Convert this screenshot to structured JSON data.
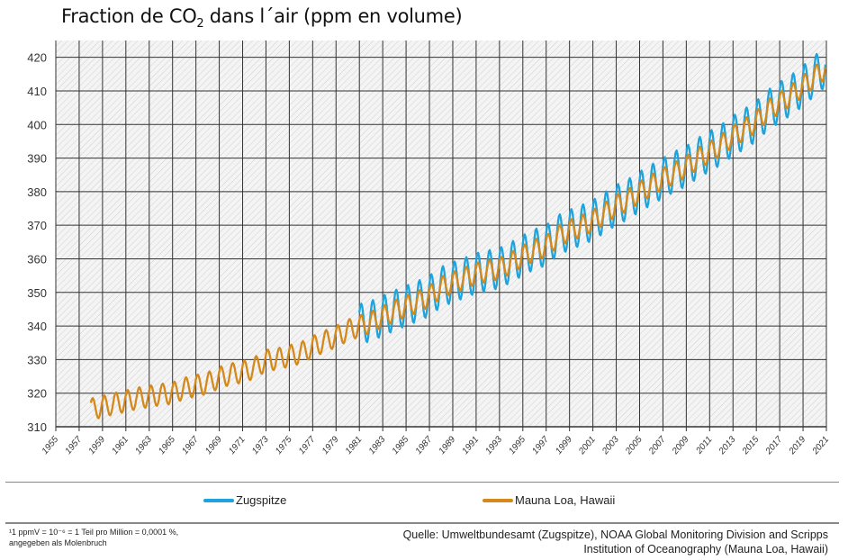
{
  "title_pre": "Fraction de CO",
  "title_sub": "2",
  "title_post": " dans l´air (ppm en volume)",
  "chart_data": {
    "type": "line",
    "title": "Fraction de CO2 dans l´air (ppm en volume)",
    "xlim": [
      1955,
      2021
    ],
    "ylim": [
      310,
      425
    ],
    "yticks": [
      310,
      320,
      330,
      340,
      350,
      360,
      370,
      380,
      390,
      400,
      410,
      420
    ],
    "xticks": [
      1955,
      1957,
      1959,
      1961,
      1963,
      1965,
      1967,
      1969,
      1971,
      1973,
      1975,
      1977,
      1979,
      1981,
      1983,
      1985,
      1987,
      1989,
      1991,
      1993,
      1995,
      1997,
      1999,
      2001,
      2003,
      2005,
      2007,
      2009,
      2011,
      2013,
      2015,
      2017,
      2019,
      2021
    ],
    "grid": true,
    "legend_placement": "bottom",
    "series": [
      {
        "name": "Zugspitze",
        "color": "#1fa3dc",
        "start_year": 1981,
        "seasonal_amplitude_ppm": 6,
        "annual_mean": [
          340.5,
          341.5,
          343,
          344.6,
          346,
          347.4,
          349,
          351.6,
          353,
          354.3,
          355.7,
          356.5,
          357.2,
          359,
          361,
          362.8,
          364,
          367,
          368.6,
          370,
          371.5,
          373.7,
          376,
          377.7,
          380,
          382,
          384,
          386,
          387.6,
          390,
          392,
          394,
          396.6,
          398.7,
          401,
          404.3,
          406.6,
          408.8,
          411.5,
          414.5
        ]
      },
      {
        "name": "Mauna Loa, Hawaii",
        "color": "#d4891a",
        "start_year": 1958,
        "seasonal_amplitude_ppm": 3.2,
        "annual_mean": [
          315.2,
          316.0,
          316.9,
          317.6,
          318.5,
          319.0,
          319.6,
          320.0,
          321.4,
          322.2,
          323.0,
          324.6,
          325.7,
          326.3,
          327.5,
          329.7,
          330.2,
          331.1,
          332.0,
          333.8,
          335.4,
          336.8,
          338.7,
          339.9,
          341.1,
          342.8,
          344.4,
          345.9,
          347.2,
          348.9,
          351.5,
          352.9,
          354.2,
          355.6,
          356.4,
          357.1,
          358.8,
          360.8,
          362.6,
          363.7,
          366.7,
          368.4,
          369.7,
          371.3,
          373.5,
          375.8,
          377.5,
          379.8,
          381.9,
          383.8,
          385.6,
          387.4,
          389.9,
          391.7,
          393.9,
          396.5,
          398.6,
          400.8,
          404.2,
          406.5,
          408.7,
          411.4,
          414.2
        ]
      }
    ]
  },
  "footnote_line1": "¹1 ppmV = 10⁻⁶ = 1 Teil pro Million = 0,0001 %,",
  "footnote_line2": "angegeben als Molenbruch",
  "source_line1": "Quelle: Umweltbundesamt (Zugspitze), NOAA Global Monitoring Division and Scripps",
  "source_line2": "Institution of Oceanography (Mauna Loa, Hawaii)"
}
